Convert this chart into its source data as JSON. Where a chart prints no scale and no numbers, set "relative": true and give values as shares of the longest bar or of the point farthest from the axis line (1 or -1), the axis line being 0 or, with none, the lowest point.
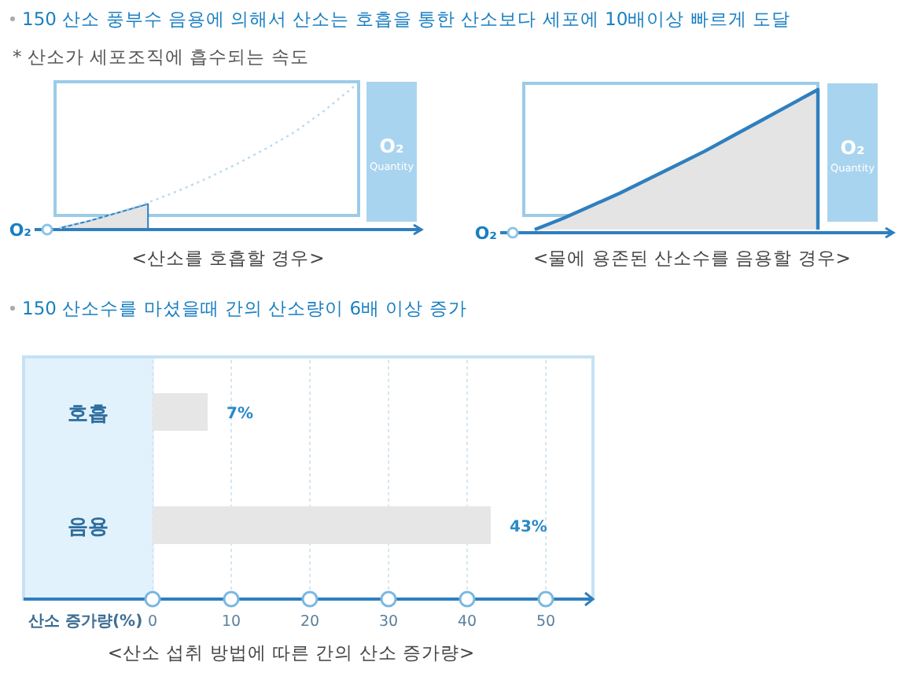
{
  "chart_data": [
    {
      "type": "area",
      "title": "150 산소 풍부수 음용에 의해서 산소는 호흡을 통한 산소보다 세포에 10배이상 빠르게 도달",
      "subtitle": "* 산소가 세포조직에 흡수되는 속도",
      "ylabel": "Quantity",
      "relative": true,
      "annotations": [
        "O₂",
        "O₂",
        "<산소를 호흡할 경우>"
      ],
      "categories": [
        null,
        null,
        null,
        null,
        null,
        null,
        null,
        null,
        null,
        null,
        null
      ],
      "series": [
        {
          "type": "area",
          "color": "#e4e4e4",
          "values": [
            0,
            0.05,
            0.11,
            0.17,
            null,
            null,
            null,
            null,
            null,
            null,
            null
          ]
        },
        {
          "type": "line",
          "line_style": "dotted",
          "color": "#b9d9ee",
          "values": [
            0,
            0.05,
            0.11,
            0.18,
            0.26,
            0.35,
            0.45,
            0.56,
            0.68,
            0.83,
            1.0
          ]
        }
      ]
    },
    {
      "type": "area",
      "ylabel": "Quantity",
      "relative": true,
      "annotations": [
        "O₂",
        "O₂",
        "<물에 용존된 산소수를 음용할 경우>"
      ],
      "categories": [
        null,
        null,
        null,
        null,
        null,
        null,
        null,
        null,
        null,
        null,
        null
      ],
      "series": [
        {
          "type": "area",
          "color": "#e4e4e4",
          "values": [
            0,
            0.08,
            0.17,
            0.26,
            0.36,
            0.46,
            0.56,
            0.67,
            0.78,
            0.89,
            1.0
          ]
        }
      ]
    },
    {
      "type": "bar",
      "orientation": "horizontal",
      "title": "150 산소수를 마셨을때 간의 산소량이 6배 이상 증가",
      "xlabel": "산소 증가량(%)",
      "annotations": [
        "<산소 섭취 방법에 따른 간의 산소 증가량>"
      ],
      "categories": [
        "호흡",
        "음용"
      ],
      "values": [
        7,
        43
      ],
      "color": "#e6e6e6",
      "value_labels": [
        "7%",
        "43%"
      ],
      "xlim": [
        0,
        56
      ],
      "xticks": [
        0,
        10,
        20,
        30,
        40,
        50
      ],
      "grid": "x"
    }
  ]
}
